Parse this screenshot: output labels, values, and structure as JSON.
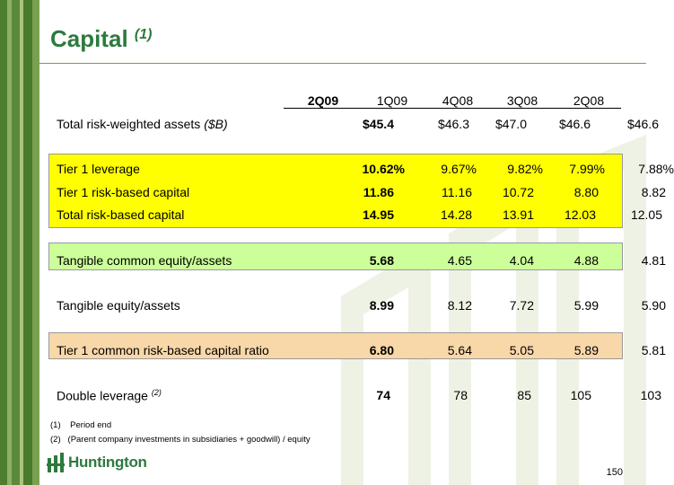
{
  "title": {
    "text": "Capital",
    "superscript": "(1)"
  },
  "columns": [
    "2Q09",
    "1Q09",
    "4Q08",
    "3Q08",
    "2Q08"
  ],
  "rows": [
    {
      "label": "Total risk-weighted assets ",
      "label_italic": "($B)",
      "values": [
        "$45.4",
        "$46.3",
        "$47.0",
        "$46.6",
        "$46.6"
      ]
    },
    {
      "label": "Tier 1 leverage",
      "values": [
        "10.62%",
        "9.67%",
        "9.82%",
        "7.99%",
        "7.88%"
      ]
    },
    {
      "label": "Tier 1 risk-based capital",
      "values": [
        "11.86",
        "11.16",
        "10.72",
        "8.80",
        "8.82"
      ]
    },
    {
      "label": "Total risk-based capital",
      "values": [
        "14.95",
        "14.28",
        "13.91",
        "12.03",
        "12.05"
      ]
    },
    {
      "label": "Tangible common equity/assets",
      "values": [
        "5.68",
        "4.65",
        "4.04",
        "4.88",
        "4.81"
      ]
    },
    {
      "label": "Tangible equity/assets",
      "values": [
        "8.99",
        "8.12",
        "7.72",
        "5.99",
        "5.90"
      ]
    },
    {
      "label": "Tier 1 common risk-based capital ratio",
      "values": [
        "6.80",
        "5.64",
        "5.05",
        "5.89",
        "5.81"
      ]
    },
    {
      "label": "Double leverage ",
      "label_sup": "(2)",
      "values": [
        "74",
        "78",
        "85",
        "105",
        "103"
      ]
    }
  ],
  "footnotes": [
    "(1)    Period end",
    "(2)   (Parent company investments in subsidiaries + goodwill) / equity"
  ],
  "logo": {
    "text": "Huntington"
  },
  "page_number": "150",
  "colors": {
    "brand_green": "#2d7a3e",
    "yellow_band": "#ffff00",
    "light_green_band": "#ccff99",
    "peach_band": "#f8d7a8",
    "stripe_green": "#5b8a3a"
  }
}
